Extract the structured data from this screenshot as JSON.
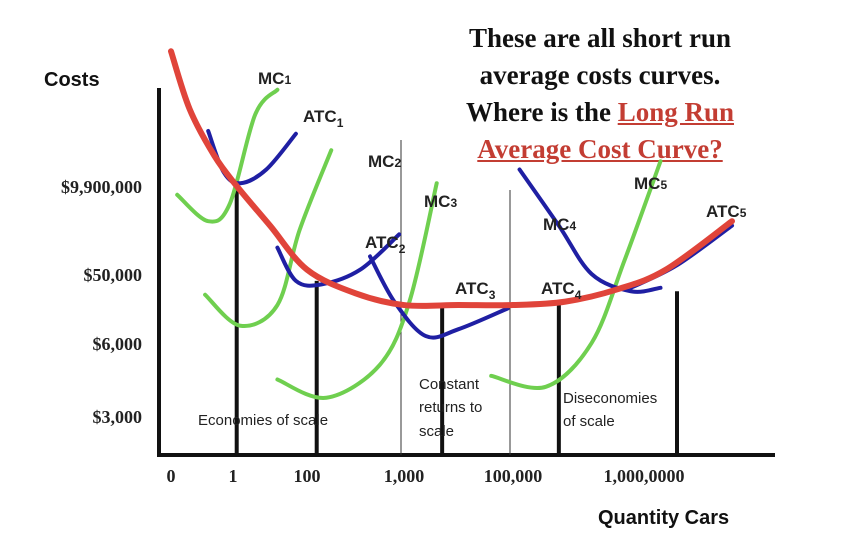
{
  "heading": {
    "line1": "These are all short run",
    "line2": "average costs curves.",
    "line3_prefix": "Where is the ",
    "line3_link": "Long Run",
    "line4_link": "Average Cost Curve?"
  },
  "colors": {
    "mc": "#6fcf4f",
    "atc": "#1f1fa3",
    "lrac": "#e0443a",
    "axis": "#111111",
    "link": "#c33d33"
  },
  "chart_data": {
    "type": "line",
    "title": "These are all short run average costs curves. Where is the Long Run Average Cost Curve?",
    "xlabel": "Quantity Cars",
    "ylabel": "Costs",
    "x_scale": "categorical-log",
    "x_ticks": [
      "0",
      "1",
      "100",
      "1,000",
      "100,000",
      "1,000,0000"
    ],
    "y_ticks": [
      "$3,000",
      "$6,000",
      "$50,000",
      "$9,900,000"
    ],
    "tick_x_index": [
      0,
      1,
      2,
      3,
      4,
      5
    ],
    "tick_y_index": [
      0,
      1,
      2,
      3
    ],
    "series": [
      {
        "name": "MC1",
        "kind": "mc",
        "label": "MC1",
        "points": [
          [
            0.1,
            2.9
          ],
          [
            0.6,
            2.6
          ],
          [
            0.95,
            2.8
          ],
          [
            1.3,
            4.3
          ],
          [
            1.6,
            4.75
          ]
        ]
      },
      {
        "name": "ATC1",
        "kind": "atc",
        "label": "ATC1",
        "points": [
          [
            0.6,
            4.0
          ],
          [
            0.85,
            3.25
          ],
          [
            1.1,
            3.05
          ],
          [
            1.45,
            3.3
          ],
          [
            1.85,
            3.95
          ]
        ]
      },
      {
        "name": "MC2",
        "kind": "mc",
        "label": "MC2",
        "points": [
          [
            0.55,
            1.7
          ],
          [
            1.1,
            1.25
          ],
          [
            1.6,
            1.55
          ],
          [
            1.9,
            2.5
          ],
          [
            2.25,
            3.65
          ]
        ]
      },
      {
        "name": "ATC2",
        "kind": "atc",
        "label": "ATC2",
        "points": [
          [
            1.6,
            2.3
          ],
          [
            1.85,
            1.9
          ],
          [
            2.15,
            1.85
          ],
          [
            2.55,
            2.05
          ],
          [
            2.95,
            2.45
          ]
        ]
      },
      {
        "name": "MC3",
        "kind": "mc",
        "label": "MC3",
        "points": [
          [
            1.6,
            0.5
          ],
          [
            2.2,
            0.25
          ],
          [
            2.75,
            0.7
          ],
          [
            3.05,
            1.6
          ],
          [
            3.3,
            3.05
          ]
        ]
      },
      {
        "name": "ATC3",
        "kind": "atc",
        "label": "ATC3",
        "points": [
          [
            2.65,
            2.2
          ],
          [
            2.9,
            1.6
          ],
          [
            3.2,
            1.1
          ],
          [
            3.5,
            1.2
          ],
          [
            3.95,
            1.5
          ]
        ]
      },
      {
        "name": "MC4",
        "kind": "mc",
        "label": "MC4",
        "points": [
          [
            3.8,
            0.55
          ],
          [
            4.25,
            0.4
          ],
          [
            4.6,
            1.0
          ],
          [
            4.85,
            2.15
          ],
          [
            5.15,
            3.45
          ]
        ]
      },
      {
        "name": "ATC4",
        "kind": "atc",
        "label": "ATC4",
        "points": [
          [
            4.05,
            3.3
          ],
          [
            4.35,
            2.55
          ],
          [
            4.6,
            2.0
          ],
          [
            4.9,
            1.75
          ],
          [
            5.15,
            1.8
          ]
        ]
      },
      {
        "name": "ATC5",
        "kind": "atc",
        "label": "ATC5",
        "points": [
          [
            4.9,
            1.8
          ],
          [
            5.3,
            2.1
          ],
          [
            5.8,
            2.55
          ]
        ]
      },
      {
        "name": "LRAC",
        "kind": "lrac",
        "label": "",
        "points": [
          [
            0.0,
            5.45
          ],
          [
            0.3,
            4.4
          ],
          [
            0.7,
            3.55
          ],
          [
            1.05,
            3.0
          ],
          [
            1.5,
            2.55
          ],
          [
            2.0,
            2.05
          ],
          [
            2.5,
            1.72
          ],
          [
            3.0,
            1.55
          ],
          [
            3.5,
            1.55
          ],
          [
            4.0,
            1.55
          ],
          [
            4.4,
            1.6
          ],
          [
            4.8,
            1.78
          ],
          [
            5.2,
            2.05
          ],
          [
            5.8,
            2.6
          ]
        ]
      }
    ],
    "vertical_markers": [
      {
        "x": 1.05,
        "y_top": 3.05
      },
      {
        "x": 2.1,
        "y_top": 1.9
      },
      {
        "x": 3.35,
        "y_top": 1.55
      },
      {
        "x": 4.35,
        "y_top": 1.55
      },
      {
        "x": 5.3,
        "y_top": 1.75
      }
    ],
    "regions": [
      {
        "label": "Economies of scale"
      },
      {
        "label": "Constant returns to scale"
      },
      {
        "label": "Diseconomies of scale"
      }
    ],
    "curve_labels": [
      "MC1",
      "ATC1",
      "MC2",
      "ATC2",
      "MC3",
      "ATC3",
      "MC4",
      "ATC4",
      "MC5",
      "ATC5"
    ]
  }
}
